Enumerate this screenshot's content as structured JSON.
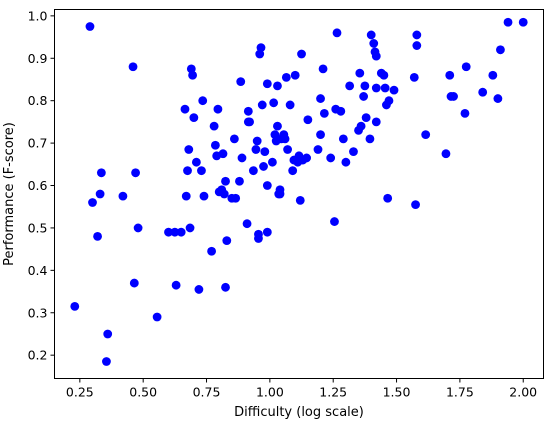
{
  "chart_data": {
    "type": "scatter",
    "xlabel": "Difficulty (log scale)",
    "ylabel": "Performance (F-score)",
    "xlim": [
      0.15,
      2.08
    ],
    "ylim": [
      0.145,
      1.015
    ],
    "xticks": [
      0.25,
      0.5,
      0.75,
      1.0,
      1.25,
      1.5,
      1.75,
      2.0
    ],
    "xtick_labels": [
      "0.25",
      "0.50",
      "0.75",
      "1.00",
      "1.25",
      "1.50",
      "1.75",
      "2.00"
    ],
    "yticks": [
      0.2,
      0.3,
      0.4,
      0.5,
      0.6,
      0.7,
      0.8,
      0.9,
      1.0
    ],
    "ytick_labels": [
      "0.2",
      "0.3",
      "0.4",
      "0.5",
      "0.6",
      "0.7",
      "0.8",
      "0.9",
      "1.0"
    ],
    "grid": false,
    "marker_color": "#0000ff",
    "points": [
      {
        "x": 0.23,
        "y": 0.315
      },
      {
        "x": 0.29,
        "y": 0.975
      },
      {
        "x": 0.3,
        "y": 0.56
      },
      {
        "x": 0.32,
        "y": 0.48
      },
      {
        "x": 0.33,
        "y": 0.58
      },
      {
        "x": 0.335,
        "y": 0.63
      },
      {
        "x": 0.355,
        "y": 0.185
      },
      {
        "x": 0.36,
        "y": 0.25
      },
      {
        "x": 0.42,
        "y": 0.575
      },
      {
        "x": 0.46,
        "y": 0.88
      },
      {
        "x": 0.465,
        "y": 0.37
      },
      {
        "x": 0.47,
        "y": 0.63
      },
      {
        "x": 0.48,
        "y": 0.5
      },
      {
        "x": 0.555,
        "y": 0.29
      },
      {
        "x": 0.6,
        "y": 0.49
      },
      {
        "x": 0.625,
        "y": 0.49
      },
      {
        "x": 0.63,
        "y": 0.365
      },
      {
        "x": 0.65,
        "y": 0.49
      },
      {
        "x": 0.665,
        "y": 0.78
      },
      {
        "x": 0.67,
        "y": 0.575
      },
      {
        "x": 0.675,
        "y": 0.635
      },
      {
        "x": 0.68,
        "y": 0.685
      },
      {
        "x": 0.685,
        "y": 0.5
      },
      {
        "x": 0.69,
        "y": 0.875
      },
      {
        "x": 0.695,
        "y": 0.86
      },
      {
        "x": 0.7,
        "y": 0.76
      },
      {
        "x": 0.71,
        "y": 0.655
      },
      {
        "x": 0.72,
        "y": 0.355
      },
      {
        "x": 0.73,
        "y": 0.635
      },
      {
        "x": 0.735,
        "y": 0.8
      },
      {
        "x": 0.74,
        "y": 0.575
      },
      {
        "x": 0.77,
        "y": 0.445
      },
      {
        "x": 0.78,
        "y": 0.74
      },
      {
        "x": 0.785,
        "y": 0.695
      },
      {
        "x": 0.79,
        "y": 0.67
      },
      {
        "x": 0.795,
        "y": 0.78
      },
      {
        "x": 0.8,
        "y": 0.585
      },
      {
        "x": 0.81,
        "y": 0.59
      },
      {
        "x": 0.815,
        "y": 0.675
      },
      {
        "x": 0.82,
        "y": 0.58
      },
      {
        "x": 0.825,
        "y": 0.36
      },
      {
        "x": 0.83,
        "y": 0.47
      },
      {
        "x": 0.825,
        "y": 0.61
      },
      {
        "x": 0.85,
        "y": 0.57
      },
      {
        "x": 0.86,
        "y": 0.71
      },
      {
        "x": 0.865,
        "y": 0.57
      },
      {
        "x": 0.88,
        "y": 0.61
      },
      {
        "x": 0.885,
        "y": 0.845
      },
      {
        "x": 0.89,
        "y": 0.665
      },
      {
        "x": 0.91,
        "y": 0.51
      },
      {
        "x": 0.915,
        "y": 0.775
      },
      {
        "x": 0.915,
        "y": 0.75
      },
      {
        "x": 0.92,
        "y": 0.75
      },
      {
        "x": 0.935,
        "y": 0.635
      },
      {
        "x": 0.945,
        "y": 0.685
      },
      {
        "x": 0.95,
        "y": 0.705
      },
      {
        "x": 0.955,
        "y": 0.485
      },
      {
        "x": 0.955,
        "y": 0.475
      },
      {
        "x": 0.96,
        "y": 0.91
      },
      {
        "x": 0.965,
        "y": 0.925
      },
      {
        "x": 0.97,
        "y": 0.79
      },
      {
        "x": 0.975,
        "y": 0.645
      },
      {
        "x": 0.98,
        "y": 0.68
      },
      {
        "x": 0.99,
        "y": 0.49
      },
      {
        "x": 0.99,
        "y": 0.6
      },
      {
        "x": 0.99,
        "y": 0.84
      },
      {
        "x": 1.01,
        "y": 0.655
      },
      {
        "x": 1.015,
        "y": 0.795
      },
      {
        "x": 1.02,
        "y": 0.72
      },
      {
        "x": 1.025,
        "y": 0.705
      },
      {
        "x": 1.03,
        "y": 0.74
      },
      {
        "x": 1.03,
        "y": 0.835
      },
      {
        "x": 1.035,
        "y": 0.58
      },
      {
        "x": 1.04,
        "y": 0.59
      },
      {
        "x": 1.04,
        "y": 0.58
      },
      {
        "x": 1.045,
        "y": 0.71
      },
      {
        "x": 1.055,
        "y": 0.72
      },
      {
        "x": 1.06,
        "y": 0.71
      },
      {
        "x": 1.065,
        "y": 0.855
      },
      {
        "x": 1.07,
        "y": 0.685
      },
      {
        "x": 1.08,
        "y": 0.79
      },
      {
        "x": 1.09,
        "y": 0.635
      },
      {
        "x": 1.095,
        "y": 0.66
      },
      {
        "x": 1.1,
        "y": 0.86
      },
      {
        "x": 1.11,
        "y": 0.655
      },
      {
        "x": 1.115,
        "y": 0.67
      },
      {
        "x": 1.12,
        "y": 0.565
      },
      {
        "x": 1.125,
        "y": 0.91
      },
      {
        "x": 1.13,
        "y": 0.66
      },
      {
        "x": 1.145,
        "y": 0.665
      },
      {
        "x": 1.15,
        "y": 0.755
      },
      {
        "x": 1.19,
        "y": 0.685
      },
      {
        "x": 1.2,
        "y": 0.72
      },
      {
        "x": 1.2,
        "y": 0.805
      },
      {
        "x": 1.21,
        "y": 0.875
      },
      {
        "x": 1.215,
        "y": 0.77
      },
      {
        "x": 1.24,
        "y": 0.665
      },
      {
        "x": 1.255,
        "y": 0.515
      },
      {
        "x": 1.26,
        "y": 0.78
      },
      {
        "x": 1.265,
        "y": 0.96
      },
      {
        "x": 1.28,
        "y": 0.775
      },
      {
        "x": 1.29,
        "y": 0.71
      },
      {
        "x": 1.3,
        "y": 0.655
      },
      {
        "x": 1.315,
        "y": 0.835
      },
      {
        "x": 1.33,
        "y": 0.68
      },
      {
        "x": 1.35,
        "y": 0.73
      },
      {
        "x": 1.355,
        "y": 0.865
      },
      {
        "x": 1.36,
        "y": 0.74
      },
      {
        "x": 1.37,
        "y": 0.81
      },
      {
        "x": 1.375,
        "y": 0.835
      },
      {
        "x": 1.38,
        "y": 0.76
      },
      {
        "x": 1.395,
        "y": 0.71
      },
      {
        "x": 1.4,
        "y": 0.955
      },
      {
        "x": 1.41,
        "y": 0.935
      },
      {
        "x": 1.415,
        "y": 0.915
      },
      {
        "x": 1.42,
        "y": 0.905
      },
      {
        "x": 1.42,
        "y": 0.83
      },
      {
        "x": 1.42,
        "y": 0.75
      },
      {
        "x": 1.44,
        "y": 0.865
      },
      {
        "x": 1.45,
        "y": 0.86
      },
      {
        "x": 1.455,
        "y": 0.83
      },
      {
        "x": 1.46,
        "y": 0.79
      },
      {
        "x": 1.465,
        "y": 0.57
      },
      {
        "x": 1.47,
        "y": 0.8
      },
      {
        "x": 1.49,
        "y": 0.825
      },
      {
        "x": 1.57,
        "y": 0.855
      },
      {
        "x": 1.575,
        "y": 0.555
      },
      {
        "x": 1.58,
        "y": 0.93
      },
      {
        "x": 1.58,
        "y": 0.955
      },
      {
        "x": 1.615,
        "y": 0.72
      },
      {
        "x": 1.695,
        "y": 0.675
      },
      {
        "x": 1.71,
        "y": 0.86
      },
      {
        "x": 1.715,
        "y": 0.81
      },
      {
        "x": 1.725,
        "y": 0.81
      },
      {
        "x": 1.77,
        "y": 0.77
      },
      {
        "x": 1.775,
        "y": 0.88
      },
      {
        "x": 1.84,
        "y": 0.82
      },
      {
        "x": 1.88,
        "y": 0.86
      },
      {
        "x": 1.9,
        "y": 0.805
      },
      {
        "x": 1.91,
        "y": 0.92
      },
      {
        "x": 1.94,
        "y": 0.985
      },
      {
        "x": 2.0,
        "y": 0.985
      }
    ]
  }
}
